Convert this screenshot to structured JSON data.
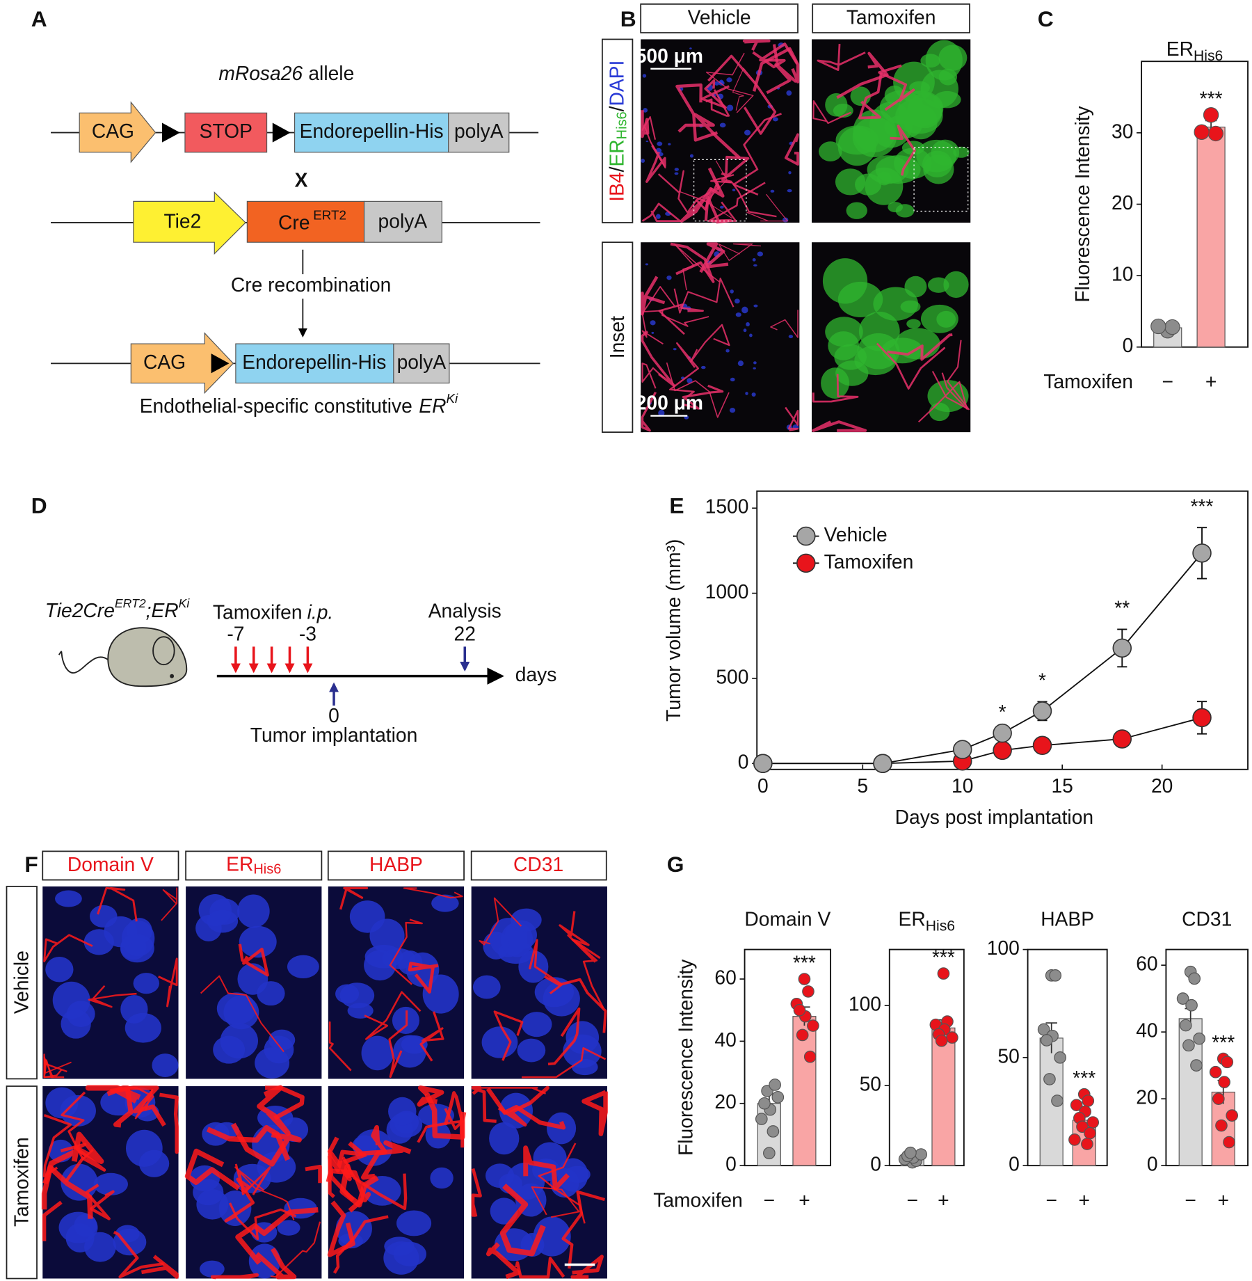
{
  "panels": {
    "A": {
      "label": "A",
      "allele": [
        "mRosa26",
        "allele"
      ],
      "rows": [
        [
          "CAG",
          "STOP",
          "Endorepellin-His",
          "polyA"
        ],
        [
          "Tie2",
          "Cre",
          "ERT2",
          "polyA"
        ],
        [
          "CAG",
          "Endorepellin-His",
          "polyA"
        ]
      ],
      "cross": "X",
      "step": "Cre recombination",
      "caption": [
        "Endothelial-specific constitutive",
        "ER",
        "Ki"
      ]
    },
    "B": {
      "label": "B",
      "columns": [
        "Vehicle",
        "Tamoxifen"
      ],
      "stain": [
        "IB4",
        "/",
        "ER",
        "His6",
        "/",
        "DAPI"
      ],
      "inset": "Inset",
      "scale_bars": [
        "500 μm",
        "200 μm"
      ]
    },
    "D": {
      "label": "D",
      "genotype": [
        "Tie2Cre",
        "ERT2",
        ";ER",
        "Ki"
      ],
      "treatment": [
        "Tamoxifen",
        "i.p."
      ],
      "treatment_days": [
        "-7",
        "-3"
      ],
      "analysis": "Analysis",
      "analysis_day": "22",
      "implant_day": "0",
      "implant": "Tumor implantation",
      "axis": "days"
    },
    "F": {
      "label": "F",
      "columns": [
        [
          "Domain V"
        ],
        [
          "ER",
          "His6"
        ],
        [
          "HABP"
        ],
        [
          "CD31"
        ]
      ],
      "rows": [
        "Vehicle",
        "Tamoxifen"
      ]
    }
  },
  "chart_data": [
    {
      "type": "bar",
      "panel_label": "C",
      "title": "ER",
      "title_subscript": "His6",
      "ylabel": "Fluorescence Intensity",
      "xlabel": "Tamoxifen",
      "categories": [
        "−",
        "+"
      ],
      "values": [
        2.7,
        30.8
      ],
      "errors": [
        0.3,
        0.9
      ],
      "colors": [
        "#d9d9d9",
        "#f9a5a5"
      ],
      "points": [
        [
          2.3,
          2.8,
          2.9
        ],
        [
          32.5,
          29.9,
          30.1
        ]
      ],
      "point_colors": [
        "#8c8c8c",
        "#e8141b"
      ],
      "significance": [
        null,
        "***"
      ],
      "ylim": [
        0,
        40
      ],
      "yticks": [
        0,
        10,
        20,
        30
      ]
    },
    {
      "type": "line",
      "panel_label": "E",
      "ylabel": "Tumor volume (mm³)",
      "xlabel": "Days post implantation",
      "x": [
        0,
        6,
        10,
        12,
        14,
        18,
        22
      ],
      "series": [
        {
          "name": "Vehicle",
          "color": "#a6a6a6",
          "values": [
            0,
            0,
            82,
            178,
            308,
            678,
            1236
          ],
          "errors": [
            null,
            null,
            null,
            null,
            55,
            110,
            150
          ]
        },
        {
          "name": "Tamoxifen",
          "color": "#e8141b",
          "values": [
            0,
            0,
            14,
            77,
            106,
            144,
            269
          ],
          "errors": [
            null,
            null,
            null,
            null,
            null,
            null,
            95
          ]
        }
      ],
      "significance": [
        null,
        null,
        null,
        "*",
        "*",
        "**",
        "***"
      ],
      "legend": "upper left",
      "xlim": [
        -0.3,
        24.3
      ],
      "ylim": [
        -35,
        1600
      ],
      "xticks": [
        0,
        5,
        10,
        15,
        20
      ],
      "yticks": [
        0,
        500,
        1000,
        1500
      ]
    },
    {
      "type": "bar",
      "panel_label": "G",
      "title": "Domain V",
      "ylabel": "Fluorescence Intensity",
      "xlabel": "Tamoxifen",
      "categories": [
        "−",
        "+"
      ],
      "values": [
        20,
        48
      ],
      "errors": [
        3,
        3
      ],
      "colors": [
        "#d9d9d9",
        "#f9a5a5"
      ],
      "points": [
        [
          4,
          11,
          15,
          18,
          20,
          22,
          24,
          26
        ],
        [
          60,
          56,
          52,
          48,
          50,
          45,
          42,
          35
        ]
      ],
      "point_colors": [
        "#8c8c8c",
        "#e8141b"
      ],
      "significance": [
        null,
        "***"
      ],
      "ylim": [
        0,
        69.5
      ],
      "yticks": [
        0,
        20,
        40,
        60
      ]
    },
    {
      "type": "bar",
      "title": "ER",
      "title_subscript": "His6",
      "categories": [
        "−",
        "+"
      ],
      "values": [
        5,
        86
      ],
      "errors": [
        1,
        5
      ],
      "colors": [
        "#d9d9d9",
        "#f9a5a5"
      ],
      "points": [
        [
          2,
          3,
          4,
          5,
          6,
          7,
          8
        ],
        [
          120,
          90,
          88,
          85,
          82,
          80,
          78
        ]
      ],
      "point_colors": [
        "#8c8c8c",
        "#e8141b"
      ],
      "significance": [
        null,
        "***"
      ],
      "ylim": [
        0,
        135
      ],
      "yticks": [
        0,
        50,
        100
      ]
    },
    {
      "type": "bar",
      "title": "HABP",
      "categories": [
        "−",
        "+"
      ],
      "values": [
        59,
        21
      ],
      "errors": [
        7,
        2.5
      ],
      "colors": [
        "#d9d9d9",
        "#f9a5a5"
      ],
      "points": [
        [
          88,
          88,
          63,
          60,
          58,
          50,
          40,
          30
        ],
        [
          33,
          30,
          28,
          25,
          22,
          20,
          18,
          15,
          12,
          10
        ]
      ],
      "point_colors": [
        "#8c8c8c",
        "#e8141b"
      ],
      "significance": [
        null,
        "***"
      ],
      "ylim": [
        0,
        100
      ],
      "yticks": [
        0,
        50,
        100
      ]
    },
    {
      "type": "bar",
      "title": "CD31",
      "categories": [
        "−",
        "+"
      ],
      "values": [
        44,
        22
      ],
      "errors": [
        3,
        3.5
      ],
      "colors": [
        "#d9d9d9",
        "#f9a5a5"
      ],
      "points": [
        [
          58,
          56,
          50,
          48,
          42,
          38,
          36,
          30
        ],
        [
          32,
          31,
          28,
          25,
          20,
          15,
          12,
          7
        ]
      ],
      "point_colors": [
        "#8c8c8c",
        "#e8141b"
      ],
      "significance": [
        null,
        "***"
      ],
      "ylim": [
        0,
        64.7
      ],
      "yticks": [
        0,
        20,
        40,
        60
      ]
    }
  ]
}
